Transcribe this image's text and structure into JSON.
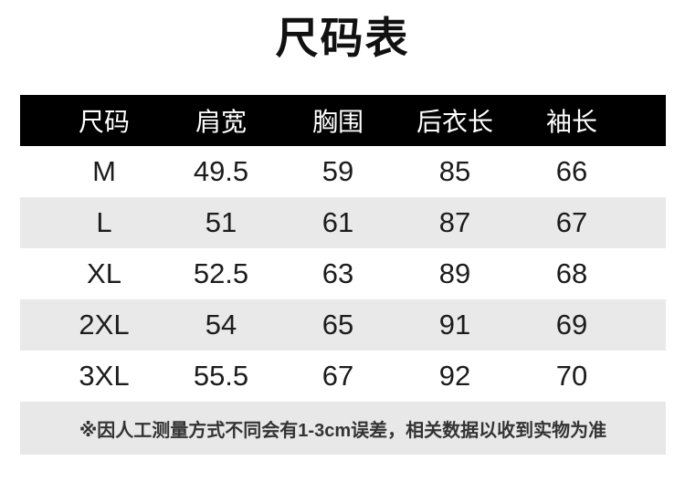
{
  "page_title": "尺码表",
  "table": {
    "columns": [
      "尺码",
      "肩宽",
      "胸围",
      "后衣长",
      "袖长"
    ],
    "rows": [
      [
        "M",
        "49.5",
        "59",
        "85",
        "66"
      ],
      [
        "L",
        "51",
        "61",
        "87",
        "67"
      ],
      [
        "XL",
        "52.5",
        "63",
        "89",
        "68"
      ],
      [
        "2XL",
        "54",
        "65",
        "91",
        "69"
      ],
      [
        "3XL",
        "55.5",
        "67",
        "92",
        "70"
      ]
    ]
  },
  "footnote": "※因人工测量方式不同会有1-3cm误差，相关数据以收到实物为准",
  "colors": {
    "header_background": "#000000",
    "header_text": "#ffffff",
    "stripe_row_background": "#e9e9e9",
    "footnote_background": "#e8e8e8",
    "body_text": "#1c1c1c",
    "page_background": "#ffffff"
  },
  "chart_data": {
    "type": "table",
    "title": "尺码表",
    "columns": [
      "尺码",
      "肩宽",
      "胸围",
      "后衣长",
      "袖长"
    ],
    "rows": [
      {
        "尺码": "M",
        "肩宽": 49.5,
        "胸围": 59,
        "后衣长": 85,
        "袖长": 66
      },
      {
        "尺码": "L",
        "肩宽": 51,
        "胸围": 61,
        "后衣长": 87,
        "袖长": 67
      },
      {
        "尺码": "XL",
        "肩宽": 52.5,
        "胸围": 63,
        "后衣长": 89,
        "袖长": 68
      },
      {
        "尺码": "2XL",
        "肩宽": 54,
        "胸围": 65,
        "后衣长": 91,
        "袖长": 69
      },
      {
        "尺码": "3XL",
        "肩宽": 55.5,
        "胸围": 67,
        "后衣长": 92,
        "袖长": 70
      }
    ],
    "footnote": "※因人工测量方式不同会有1-3cm误差，相关数据以收到实物为准",
    "layout_hints": {
      "header_style": "black background, white text",
      "zebra_striping": "rows L and 2XL shaded light gray",
      "alignment": "all cells centered"
    }
  }
}
